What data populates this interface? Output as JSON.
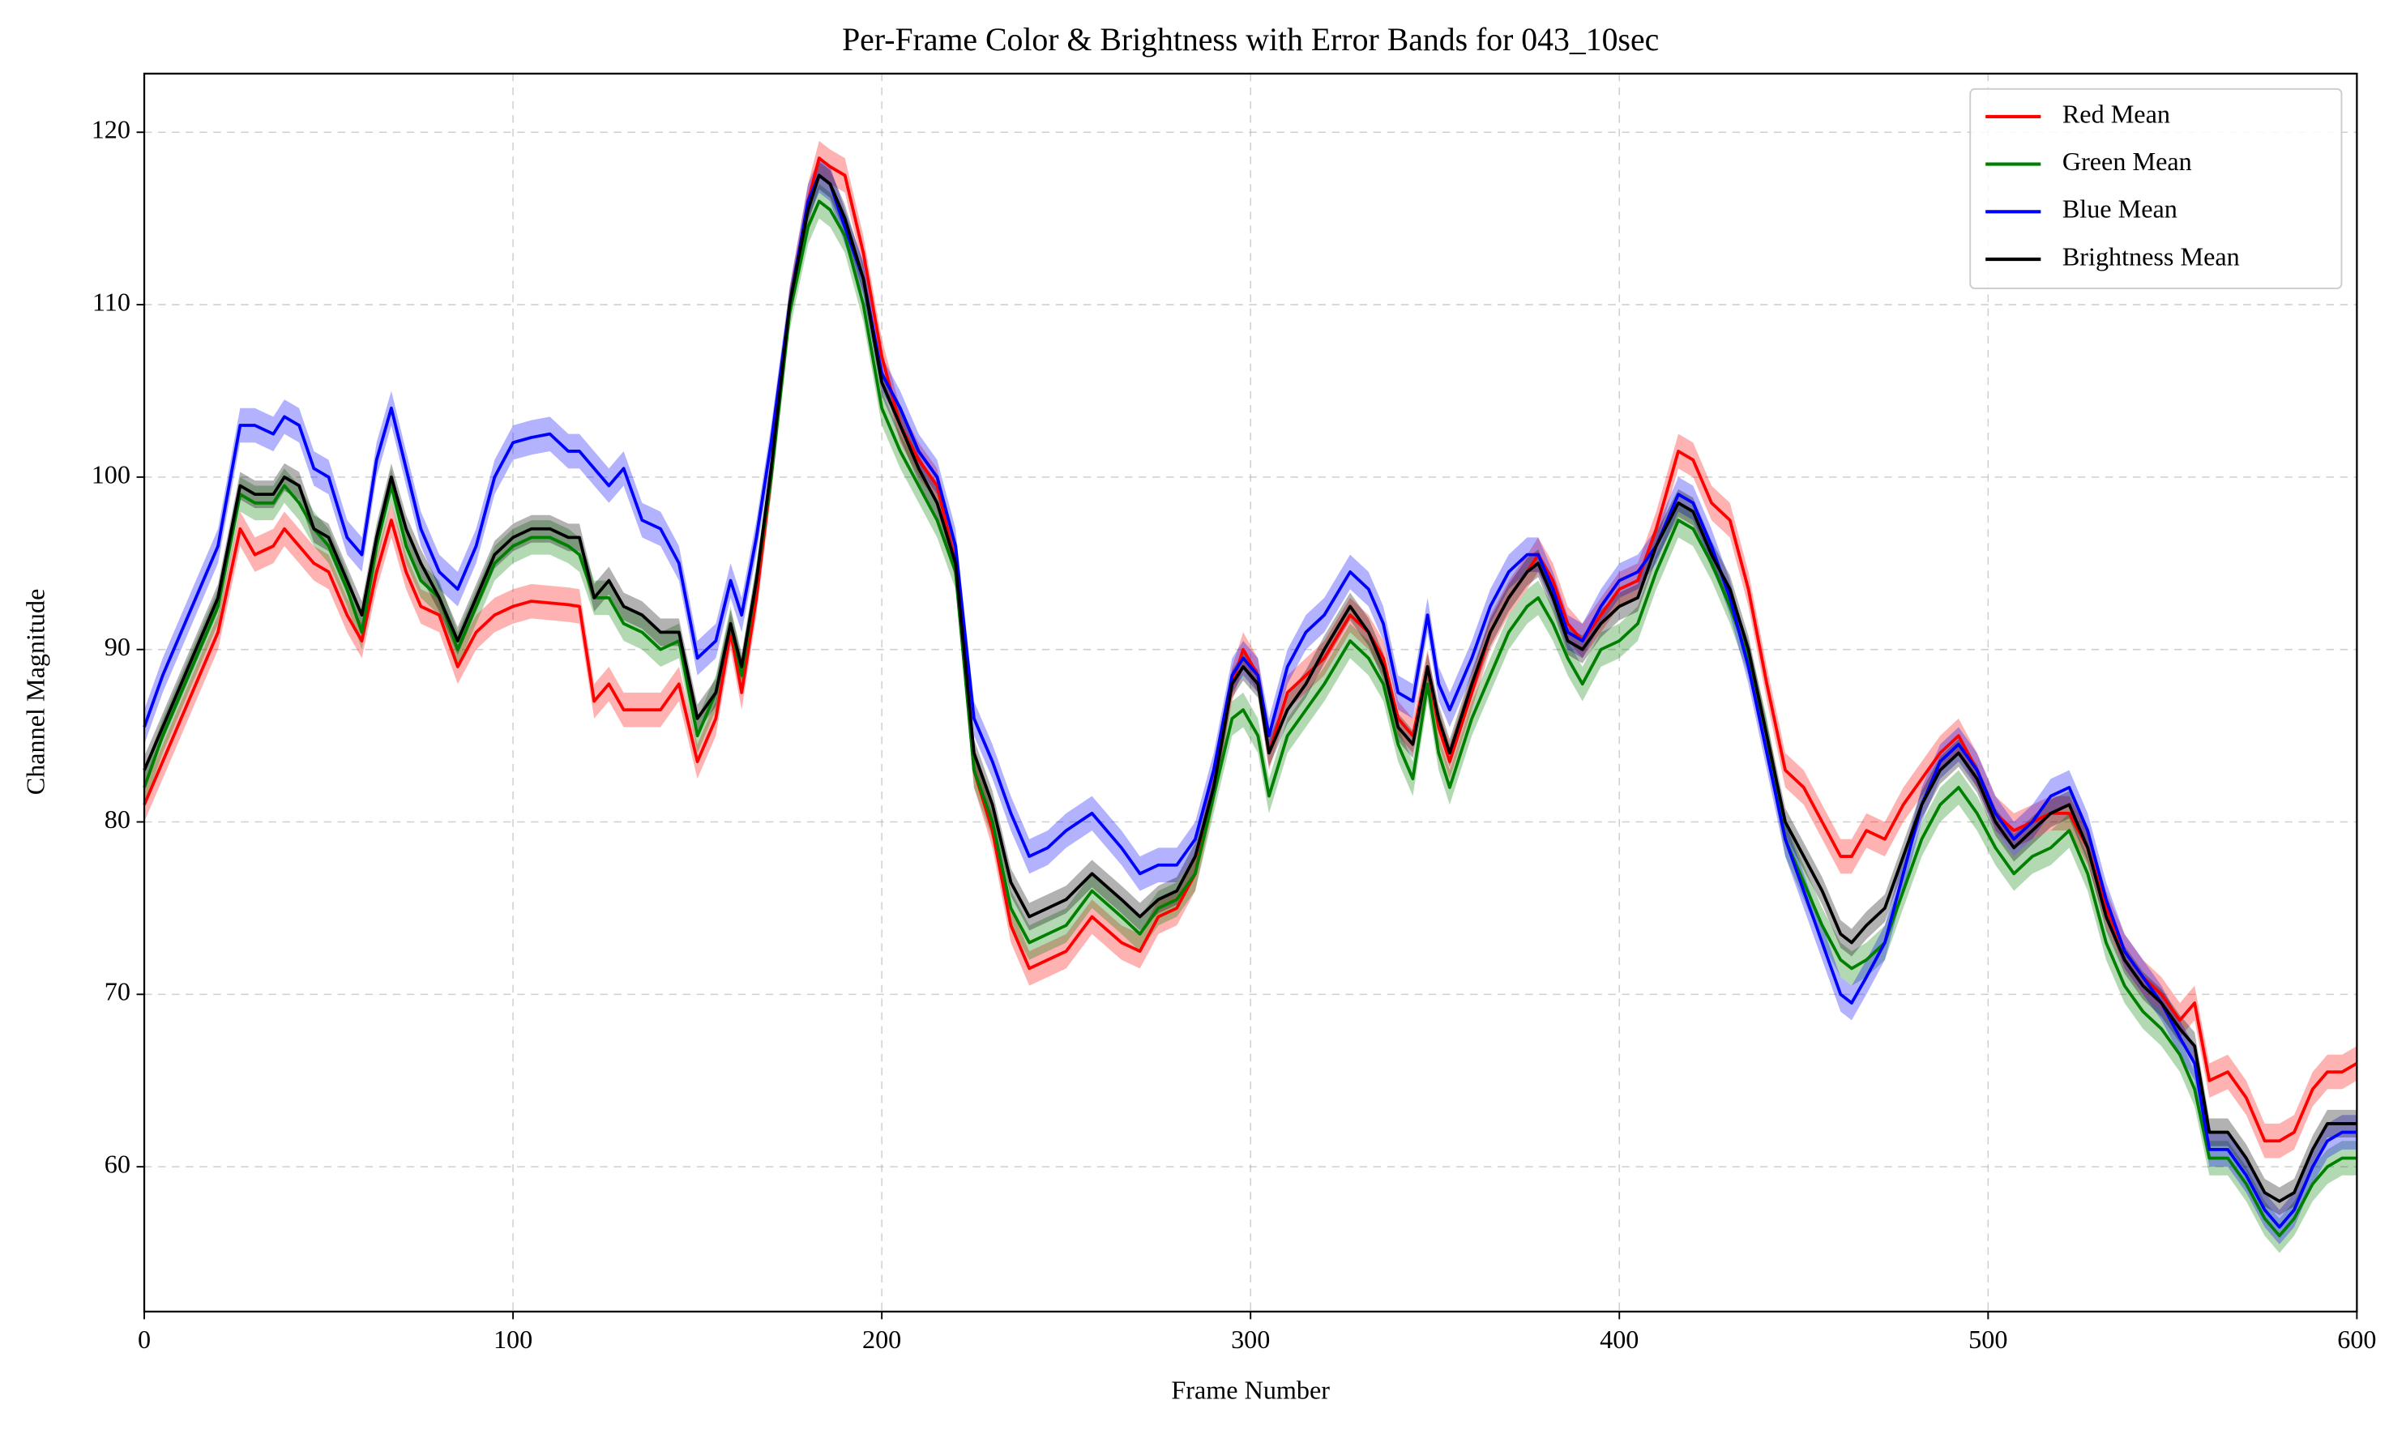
{
  "chart_data": {
    "type": "line",
    "title": "Per-Frame Color & Brightness with Error Bands for 043_10sec",
    "x_label": "Frame Number",
    "y_label": "Channel Magnitude",
    "xlim": [
      0,
      600
    ],
    "xticks": [
      0,
      100,
      200,
      300,
      400,
      500,
      600
    ],
    "ylim": [
      51.6,
      123.4
    ],
    "yticks": [
      60,
      70,
      80,
      90,
      100,
      110,
      120
    ],
    "grid": true,
    "legend": "upper right",
    "x": [
      0,
      5,
      10,
      15,
      20,
      26,
      30,
      35,
      38,
      42,
      46,
      50,
      55,
      59,
      63,
      67,
      71,
      75,
      80,
      85,
      90,
      95,
      100,
      105,
      110,
      115,
      118,
      122,
      126,
      130,
      135,
      140,
      145,
      150,
      155,
      159,
      162,
      166,
      170,
      175,
      180,
      183,
      186,
      190,
      195,
      200,
      205,
      210,
      215,
      220,
      225,
      230,
      235,
      240,
      245,
      250,
      257,
      265,
      270,
      275,
      280,
      285,
      290,
      295,
      298,
      302,
      305,
      310,
      315,
      320,
      327,
      332,
      336,
      340,
      344,
      348,
      351,
      354,
      360,
      365,
      370,
      375,
      378,
      382,
      386,
      390,
      395,
      400,
      405,
      410,
      416,
      420,
      425,
      430,
      435,
      440,
      445,
      450,
      455,
      460,
      463,
      467,
      472,
      477,
      482,
      487,
      492,
      497,
      502,
      507,
      512,
      517,
      522,
      527,
      532,
      537,
      542,
      547,
      552,
      556,
      560,
      565,
      570,
      575,
      579,
      583,
      588,
      592,
      596,
      600
    ],
    "series": [
      {
        "name": "Red Mean",
        "color": "#ff0000",
        "error": 1.0,
        "values": [
          81,
          83.5,
          86,
          88.5,
          91,
          97,
          95.5,
          96,
          97,
          96,
          95,
          94.5,
          92,
          90.5,
          94.5,
          97.5,
          94.5,
          92.5,
          92,
          89,
          91,
          92,
          92.5,
          92.8,
          92.7,
          92.6,
          92.5,
          87,
          88,
          86.5,
          86.5,
          86.5,
          88,
          83.5,
          86,
          91,
          87.5,
          93,
          100,
          110,
          116,
          118.5,
          118,
          117.5,
          113,
          107,
          103,
          101,
          99.5,
          95,
          83,
          79.5,
          74,
          71.5,
          72,
          72.5,
          74.5,
          73,
          72.5,
          74.5,
          75,
          77,
          82,
          88,
          90,
          88.5,
          84,
          87.5,
          88.5,
          89.5,
          92,
          91,
          89.5,
          86,
          85,
          89,
          85.5,
          83.5,
          87.5,
          91,
          93,
          94.5,
          95.5,
          94,
          91.5,
          90.5,
          92,
          93.5,
          94,
          97,
          101.5,
          101,
          98.5,
          97.5,
          93.5,
          88,
          83,
          82,
          80,
          78,
          78,
          79.5,
          79,
          81,
          82.5,
          84,
          85,
          83,
          80.5,
          79.5,
          80,
          80.5,
          80.5,
          78.5,
          75,
          72.5,
          71,
          70,
          68.5,
          69.5,
          65,
          65.5,
          64,
          61.5,
          61.5,
          62,
          64.5,
          65.5,
          65.5,
          66
        ]
      },
      {
        "name": "Green Mean",
        "color": "#008000",
        "error": 1.0,
        "values": [
          82,
          85,
          87.5,
          90,
          92.5,
          99,
          98.5,
          98.5,
          99.5,
          98.5,
          97,
          96,
          93.5,
          91,
          96,
          99.5,
          96,
          94,
          93,
          90,
          92.5,
          95,
          96,
          96.5,
          96.5,
          96,
          95.5,
          93,
          93,
          91.5,
          91,
          90,
          90.5,
          85,
          87.5,
          91.5,
          88.5,
          94,
          100,
          109.5,
          114.5,
          116,
          115.5,
          114,
          110,
          104,
          101.5,
          99.5,
          97.5,
          94.5,
          83,
          80,
          75,
          73,
          73.5,
          74,
          76,
          74.5,
          73.5,
          75,
          75.5,
          77,
          81.5,
          86,
          86.5,
          85,
          81.5,
          85,
          86.5,
          88,
          90.5,
          89.5,
          88,
          84.5,
          82.5,
          88,
          84,
          82,
          86,
          88.5,
          91,
          92.5,
          93,
          91.5,
          89.5,
          88,
          90,
          90.5,
          91.5,
          94.5,
          97.5,
          97,
          95,
          92.5,
          89.5,
          85,
          79,
          76.5,
          74,
          72,
          71.5,
          72,
          73,
          76,
          79,
          81,
          82,
          80.5,
          78.5,
          77,
          78,
          78.5,
          79.5,
          77,
          73,
          70.5,
          69,
          68,
          66.5,
          64.5,
          60.5,
          60.5,
          59,
          57,
          56,
          57,
          59,
          60,
          60.5,
          60.5
        ]
      },
      {
        "name": "Blue Mean",
        "color": "#0000ff",
        "error": 1.0,
        "values": [
          85.5,
          88.5,
          91,
          93.5,
          96,
          103,
          103,
          102.5,
          103.5,
          103,
          100.5,
          100,
          96.5,
          95.5,
          101,
          104,
          100.5,
          97,
          94.5,
          93.5,
          96,
          100,
          102,
          102.3,
          102.5,
          101.5,
          101.5,
          100.5,
          99.5,
          100.5,
          97.5,
          97,
          95,
          89.5,
          90.5,
          94,
          92,
          96.5,
          102,
          110,
          116,
          117.5,
          117,
          114.5,
          111.5,
          106,
          104,
          101.5,
          100,
          96,
          86,
          83.5,
          80.5,
          78,
          78.5,
          79.5,
          80.5,
          78.5,
          77,
          77.5,
          77.5,
          79,
          83,
          88.5,
          89.5,
          88.5,
          85,
          89,
          91,
          92,
          94.5,
          93.5,
          91.5,
          87.5,
          87,
          92,
          88,
          86.5,
          89.5,
          92.5,
          94.5,
          95.5,
          95.5,
          93.5,
          91,
          90.5,
          92.5,
          94,
          94.5,
          96,
          99,
          98.5,
          96,
          93,
          89,
          84,
          79,
          76,
          73,
          70,
          69.5,
          71,
          73,
          77,
          81,
          83.5,
          84.5,
          83,
          80.5,
          79,
          80,
          81.5,
          82,
          79.5,
          75.5,
          72.5,
          71,
          69.5,
          67.5,
          66,
          61,
          61,
          59.5,
          57.5,
          56.5,
          57.5,
          60,
          61.5,
          62,
          62
        ]
      },
      {
        "name": "Brightness Mean",
        "color": "#000000",
        "error": 0.8,
        "values": [
          83,
          85.5,
          88,
          90.5,
          93,
          99.5,
          99,
          99,
          100,
          99.5,
          97,
          96.5,
          94,
          92,
          96.5,
          100,
          97,
          95,
          93,
          90.5,
          93,
          95.5,
          96.5,
          97,
          97,
          96.5,
          96.5,
          93,
          94,
          92.5,
          92,
          91,
          91,
          86,
          87.5,
          91.5,
          89,
          94,
          100.5,
          110,
          115.5,
          117.5,
          117,
          115,
          111.5,
          105.5,
          103,
          100.5,
          98.5,
          95,
          84,
          81,
          76.5,
          74.5,
          75,
          75.5,
          77,
          75.5,
          74.5,
          75.5,
          76,
          78,
          82,
          88,
          89,
          88,
          84,
          86.5,
          88,
          90,
          92.5,
          91,
          89,
          85.5,
          84.5,
          89,
          86,
          84,
          88,
          91,
          93,
          94.5,
          95,
          93,
          90.5,
          90,
          91.5,
          92.5,
          93,
          96,
          98.5,
          98,
          95.5,
          93.5,
          90,
          85,
          80,
          78,
          76,
          73.5,
          73,
          74,
          75,
          78,
          81,
          83,
          84,
          82.5,
          80,
          78.5,
          79.5,
          80.5,
          81,
          78.5,
          74.5,
          72,
          70.5,
          69.5,
          68,
          67,
          62,
          62,
          60.5,
          58.5,
          58,
          58.5,
          61,
          62.5,
          62.5,
          62.5
        ]
      }
    ]
  }
}
